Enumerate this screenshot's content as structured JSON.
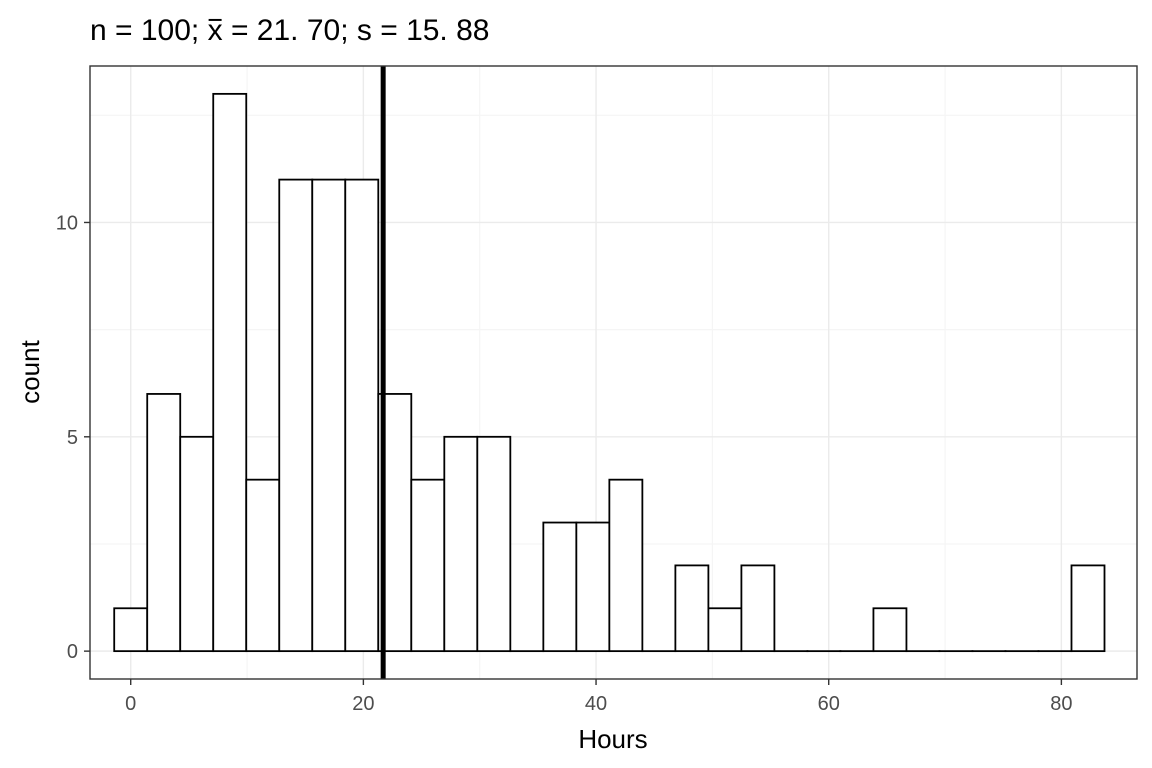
{
  "chart_data": {
    "type": "bar",
    "title": {
      "prefix": "n = 100; ",
      "mean_symbol": "x",
      "rest": " = 21. 70; s = 15. 88"
    },
    "xlabel": "Hours",
    "ylabel": "count",
    "xlim": [
      -3.5,
      86.5
    ],
    "ylim": [
      -0.65,
      13.65
    ],
    "x_ticks": [
      0,
      20,
      40,
      60,
      80
    ],
    "x_tick_labels": [
      "0",
      "20",
      "40",
      "60",
      "80"
    ],
    "y_ticks": [
      0,
      5,
      10
    ],
    "y_tick_labels": [
      "0",
      "5",
      "10"
    ],
    "bin_width": 2.8375,
    "bins": [
      {
        "x": 0.0,
        "count": 1
      },
      {
        "x": 2.8375,
        "count": 6
      },
      {
        "x": 5.675,
        "count": 5
      },
      {
        "x": 8.5125,
        "count": 13
      },
      {
        "x": 11.35,
        "count": 4
      },
      {
        "x": 14.1875,
        "count": 11
      },
      {
        "x": 17.025,
        "count": 11
      },
      {
        "x": 19.8625,
        "count": 11
      },
      {
        "x": 22.7,
        "count": 6
      },
      {
        "x": 25.5375,
        "count": 4
      },
      {
        "x": 28.375,
        "count": 5
      },
      {
        "x": 31.2125,
        "count": 5
      },
      {
        "x": 34.05,
        "count": 0
      },
      {
        "x": 36.8875,
        "count": 3
      },
      {
        "x": 39.725,
        "count": 3
      },
      {
        "x": 42.5625,
        "count": 4
      },
      {
        "x": 45.4,
        "count": 0
      },
      {
        "x": 48.2375,
        "count": 2
      },
      {
        "x": 51.075,
        "count": 1
      },
      {
        "x": 53.9125,
        "count": 2
      },
      {
        "x": 56.75,
        "count": 0
      },
      {
        "x": 59.5875,
        "count": 0
      },
      {
        "x": 62.425,
        "count": 0
      },
      {
        "x": 65.2625,
        "count": 1
      },
      {
        "x": 68.1,
        "count": 0
      },
      {
        "x": 70.9375,
        "count": 0
      },
      {
        "x": 73.775,
        "count": 0
      },
      {
        "x": 76.6125,
        "count": 0
      },
      {
        "x": 79.45,
        "count": 0
      },
      {
        "x": 82.2875,
        "count": 2
      }
    ],
    "mean": 21.7,
    "colors": {
      "bar_fill": "#ffffff",
      "bar_stroke": "#000000",
      "mean_line": "#000000",
      "grid_major": "#ebebeb",
      "grid_minor": "#f5f5f5",
      "panel_border": "#333333"
    },
    "grid": true,
    "legend": "none"
  }
}
